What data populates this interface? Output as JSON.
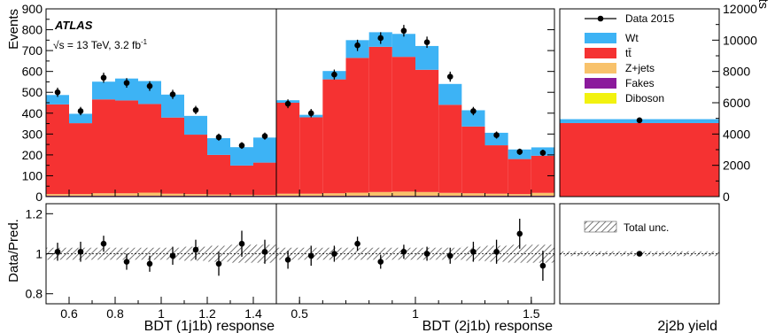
{
  "colors": {
    "wt": "#3db3f5",
    "ttbar": "#f53232",
    "zjets": "#f8c26b",
    "fakes": "#8b1a9c",
    "diboson": "#f2f20f",
    "data": "#000000"
  },
  "labels": {
    "experiment": "ATLAS",
    "energy_prefix": "√s = 13 TeV, 3.2 fb",
    "energy_exponent": "-1",
    "y_left": "Events",
    "y_right": "Events",
    "ratio_y": "Data/Pred.",
    "x1": "BDT (1j1b) response",
    "x2": "BDT (2j1b) response",
    "x3": "2j2b yield",
    "unc": "Total unc."
  },
  "chart_data": [
    {
      "type": "bar",
      "panel": "1j1b",
      "xlabel": "BDT (1j1b) response",
      "ylabel": "Events",
      "xlim": [
        0.5,
        1.5
      ],
      "ylim": [
        0,
        900
      ],
      "yticks": [
        0,
        100,
        200,
        300,
        400,
        500,
        600,
        700,
        800,
        900
      ],
      "xticks": [
        0.6,
        0.8,
        1,
        1.2,
        1.4
      ],
      "bin_edges": [
        0.5,
        0.6,
        0.7,
        0.8,
        0.9,
        1.0,
        1.1,
        1.2,
        1.3,
        1.4,
        1.5
      ],
      "series": [
        {
          "name": "Diboson",
          "values": [
            2,
            2,
            2,
            2,
            2,
            2,
            2,
            2,
            2,
            2
          ]
        },
        {
          "name": "Fakes",
          "values": [
            2,
            2,
            2,
            2,
            2,
            2,
            2,
            2,
            2,
            2
          ]
        },
        {
          "name": "Z+jets",
          "values": [
            8,
            8,
            12,
            12,
            15,
            10,
            8,
            6,
            5,
            4
          ]
        },
        {
          "name": "tt̄",
          "values": [
            430,
            340,
            450,
            445,
            425,
            365,
            285,
            190,
            140,
            155
          ]
        },
        {
          "name": "Wt",
          "values": [
            45,
            45,
            85,
            105,
            110,
            110,
            90,
            80,
            88,
            120
          ]
        }
      ],
      "data": {
        "name": "Data 2015",
        "values": [
          500,
          410,
          570,
          545,
          530,
          490,
          415,
          285,
          245,
          290
        ],
        "errors": [
          22,
          20,
          24,
          23,
          23,
          22,
          20,
          17,
          16,
          17
        ]
      }
    },
    {
      "type": "bar",
      "panel": "2j1b",
      "xlabel": "BDT (2j1b) response",
      "xlim": [
        0.4,
        1.6
      ],
      "ylim": [
        0,
        900
      ],
      "xticks": [
        0.5,
        1,
        1.5
      ],
      "bin_edges": [
        0.4,
        0.5,
        0.6,
        0.7,
        0.8,
        0.9,
        1.0,
        1.1,
        1.2,
        1.3,
        1.4,
        1.5,
        1.6
      ],
      "series": [
        {
          "name": "Diboson",
          "values": [
            2,
            2,
            2,
            2,
            2,
            2,
            2,
            2,
            2,
            2,
            2,
            2
          ]
        },
        {
          "name": "Fakes",
          "values": [
            2,
            2,
            2,
            2,
            2,
            2,
            2,
            2,
            2,
            2,
            2,
            2
          ]
        },
        {
          "name": "Z+jets",
          "values": [
            10,
            10,
            12,
            15,
            18,
            20,
            18,
            14,
            12,
            10,
            8,
            14
          ]
        },
        {
          "name": "tt̄",
          "values": [
            436,
            366,
            546,
            646,
            696,
            646,
            586,
            422,
            320,
            232,
            168,
            178
          ]
        },
        {
          "name": "Wt",
          "values": [
            12,
            12,
            40,
            85,
            70,
            110,
            114,
            100,
            78,
            60,
            46,
            40
          ]
        }
      ],
      "data": {
        "name": "Data 2015",
        "values": [
          445,
          400,
          585,
          725,
          760,
          795,
          740,
          575,
          410,
          295,
          215,
          210
        ],
        "errors": [
          21,
          20,
          24,
          27,
          28,
          28,
          27,
          24,
          20,
          17,
          15,
          15
        ]
      }
    },
    {
      "type": "bar",
      "panel": "2j2b",
      "xlabel": "2j2b yield",
      "ylabel": "Events",
      "ylim": [
        0,
        12000
      ],
      "yticks": [
        0,
        2000,
        4000,
        6000,
        8000,
        10000,
        12000
      ],
      "series": [
        {
          "name": "tt̄",
          "values": [
            4700
          ]
        },
        {
          "name": "Wt",
          "values": [
            250
          ]
        }
      ],
      "data": {
        "name": "Data 2015",
        "values": [
          4880
        ],
        "errors": [
          70
        ]
      }
    },
    {
      "type": "scatter",
      "panel": "ratio-1j1b",
      "ylabel": "Data/Pred.",
      "ylim": [
        0.75,
        1.25
      ],
      "yticks": [
        0.8,
        1,
        1.2
      ],
      "x": [
        0.55,
        0.65,
        0.75,
        0.85,
        0.95,
        1.05,
        1.15,
        1.25,
        1.35,
        1.45
      ],
      "y": [
        1.01,
        1.01,
        1.05,
        0.96,
        0.95,
        0.99,
        1.02,
        0.95,
        1.05,
        1.01
      ],
      "errors": [
        0.045,
        0.05,
        0.04,
        0.04,
        0.04,
        0.045,
        0.05,
        0.06,
        0.065,
        0.06
      ],
      "unc_band": [
        0.03,
        0.03,
        0.03,
        0.03,
        0.03,
        0.03,
        0.035,
        0.04,
        0.045,
        0.045
      ]
    },
    {
      "type": "scatter",
      "panel": "ratio-2j1b",
      "x": [
        0.45,
        0.55,
        0.65,
        0.75,
        0.85,
        0.95,
        1.05,
        1.15,
        1.25,
        1.35,
        1.45,
        1.55
      ],
      "y": [
        0.97,
        0.99,
        1.0,
        1.05,
        0.96,
        1.01,
        1.0,
        0.99,
        1.01,
        1.01,
        1.1,
        0.94
      ],
      "errors": [
        0.045,
        0.05,
        0.04,
        0.035,
        0.035,
        0.035,
        0.035,
        0.04,
        0.05,
        0.06,
        0.075,
        0.075
      ],
      "unc_band": [
        0.03,
        0.03,
        0.03,
        0.03,
        0.03,
        0.03,
        0.03,
        0.03,
        0.035,
        0.04,
        0.045,
        0.045
      ]
    },
    {
      "type": "scatter",
      "panel": "ratio-2j2b",
      "y": [
        1.0
      ],
      "errors": [
        0.01
      ],
      "unc_band": [
        0.012
      ]
    }
  ]
}
